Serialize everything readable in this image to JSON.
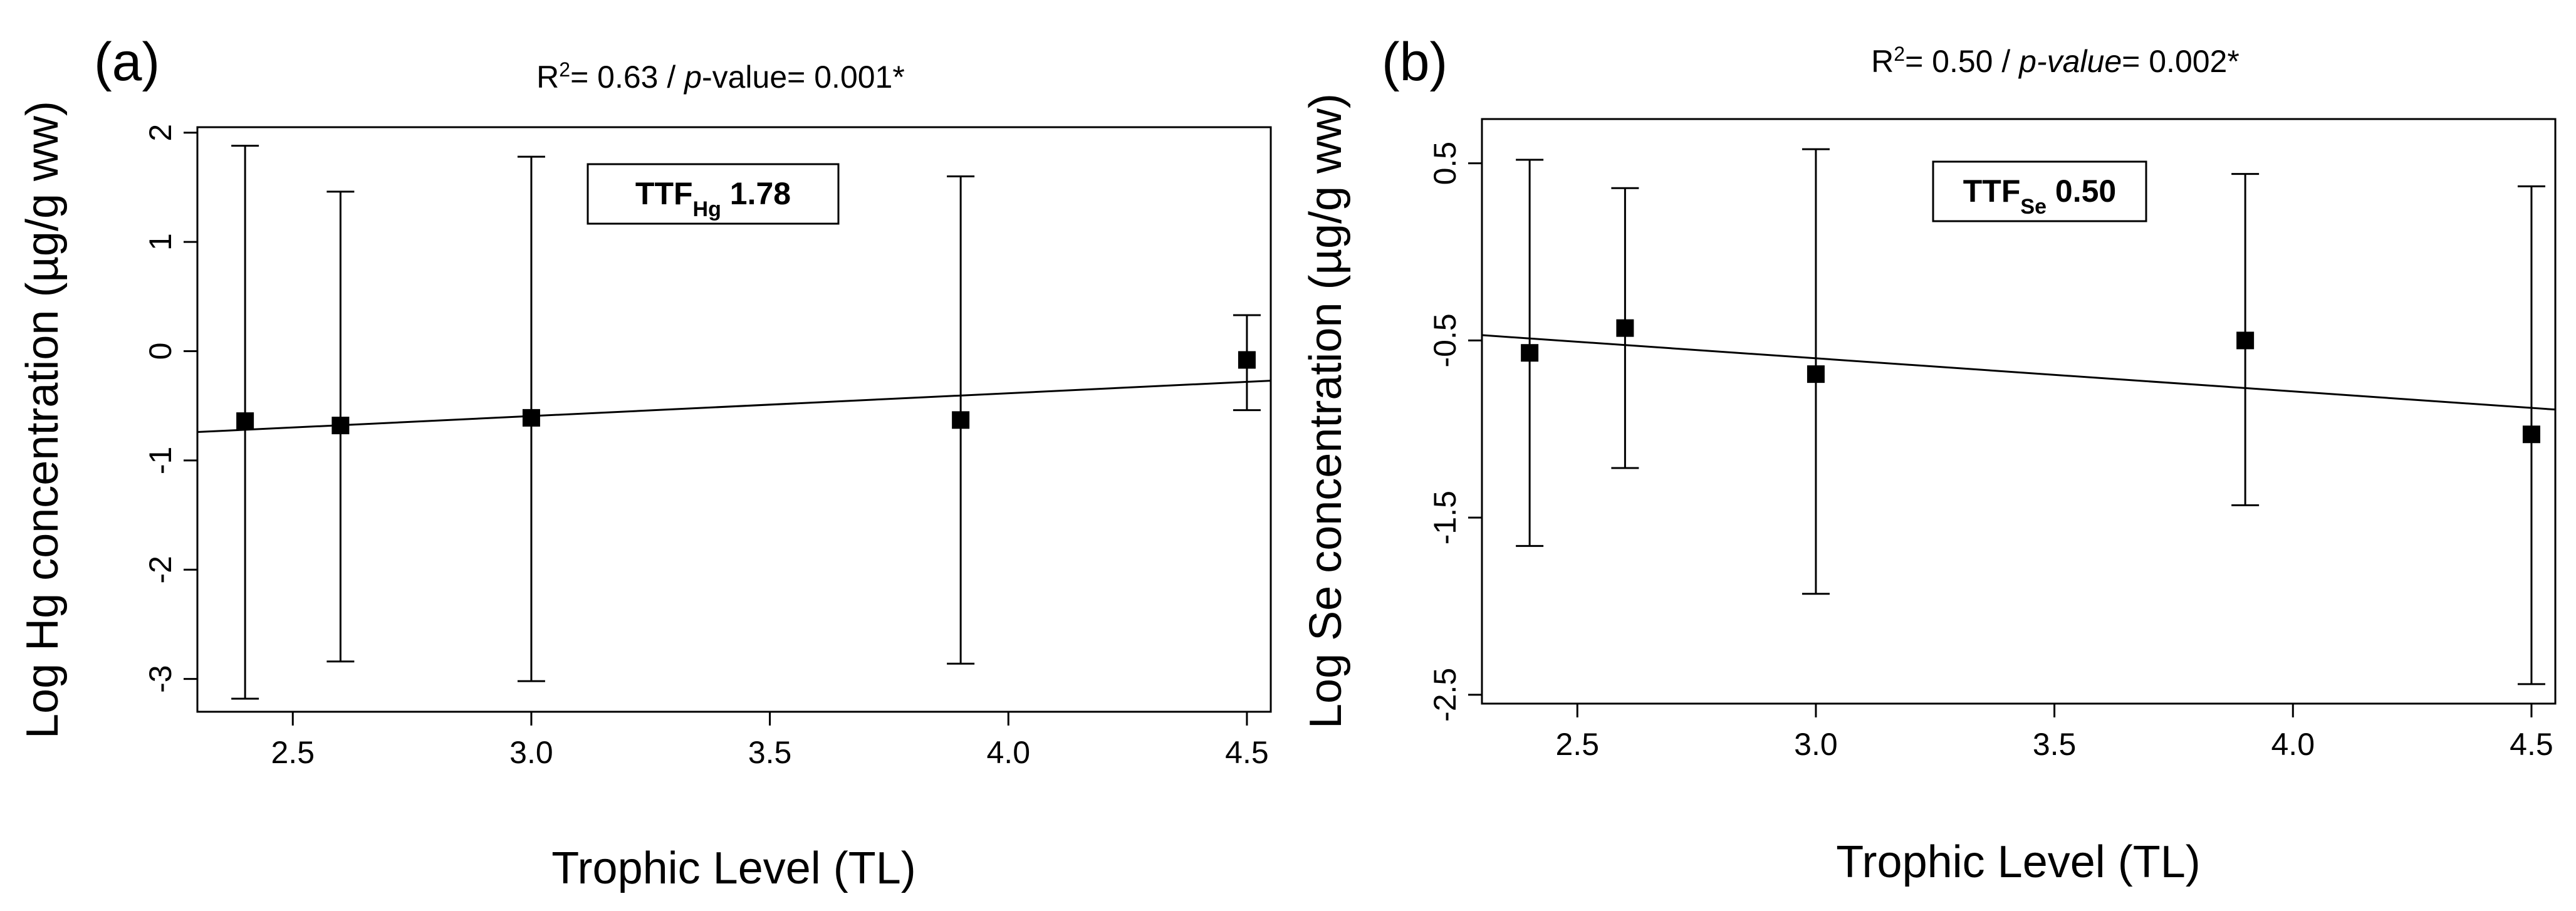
{
  "chart_data": [
    {
      "type": "scatter",
      "panel_label": "(a)",
      "stats": {
        "r2_label": "R",
        "r2_sup": "2",
        "r2_value": "= 0.63 / ",
        "p_label": "p",
        "p_value": "-value= 0.001*"
      },
      "box": {
        "main": "TTF",
        "sub": "Hg",
        "value": " 1.78"
      },
      "xlabel": "Trophic Level (TL)",
      "ylabel": "Log Hg concentration (µg/g ww)",
      "xlim": [
        2.3,
        4.55
      ],
      "ylim": [
        -3.3,
        2.05
      ],
      "xticks": [
        2.5,
        3.0,
        3.5,
        4.0,
        4.5
      ],
      "xtick_labels": [
        "2.5",
        "3.0",
        "3.5",
        "4.0",
        "4.5"
      ],
      "yticks": [
        -3,
        -2,
        -1,
        0,
        1,
        2
      ],
      "ytick_labels": [
        "-3",
        "-2",
        "-1",
        "0",
        "1",
        "2"
      ],
      "points": [
        {
          "x": 2.4,
          "y": -0.64,
          "lo": -3.18,
          "hi": 1.88
        },
        {
          "x": 2.6,
          "y": -0.68,
          "lo": -2.84,
          "hi": 1.46
        },
        {
          "x": 3.0,
          "y": -0.61,
          "lo": -3.02,
          "hi": 1.78
        },
        {
          "x": 3.9,
          "y": -0.63,
          "lo": -2.86,
          "hi": 1.6
        },
        {
          "x": 4.5,
          "y": -0.08,
          "lo": -0.54,
          "hi": 0.33
        }
      ],
      "fit_line": {
        "x": [
          2.3,
          4.55
        ],
        "y": [
          -0.74,
          -0.27
        ]
      }
    },
    {
      "type": "scatter",
      "panel_label": "(b)",
      "stats": {
        "r2_label": "R",
        "r2_sup": "2",
        "r2_value": "= 0.50 / ",
        "p_label": "p-value",
        "p_value": "= 0.002*"
      },
      "box": {
        "main": "TTF",
        "sub": "Se",
        "value": " 0.50"
      },
      "xlabel": "Trophic Level (TL)",
      "ylabel": "Log Se concentration (µg/g ww)",
      "xlim": [
        2.3,
        4.55
      ],
      "ylim": [
        -2.55,
        0.75
      ],
      "xticks": [
        2.5,
        3.0,
        3.5,
        4.0,
        4.5
      ],
      "xtick_labels": [
        "2.5",
        "3.0",
        "3.5",
        "4.0",
        "4.5"
      ],
      "yticks": [
        -2.5,
        -1.5,
        -0.5,
        0.5
      ],
      "ytick_labels": [
        "-2.5",
        "-1.5",
        "-0.5",
        "0.5"
      ],
      "points": [
        {
          "x": 2.4,
          "y": -0.57,
          "lo": -1.66,
          "hi": 0.52
        },
        {
          "x": 2.6,
          "y": -0.43,
          "lo": -1.22,
          "hi": 0.36
        },
        {
          "x": 3.0,
          "y": -0.69,
          "lo": -1.93,
          "hi": 0.58
        },
        {
          "x": 3.9,
          "y": -0.5,
          "lo": -1.43,
          "hi": 0.44
        },
        {
          "x": 4.5,
          "y": -1.03,
          "lo": -2.44,
          "hi": 0.37
        }
      ],
      "fit_line": {
        "x": [
          2.3,
          4.55
        ],
        "y": [
          -0.47,
          -0.89
        ]
      }
    }
  ]
}
